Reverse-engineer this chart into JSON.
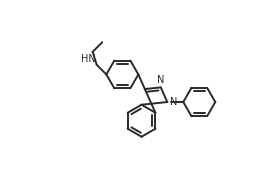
{
  "bg_color": "#ffffff",
  "line_color": "#2a2a2a",
  "line_width": 1.4,
  "font_size": 7.0,
  "figsize": [
    2.65,
    1.95
  ],
  "dpi": 100,
  "xlim": [
    0,
    10
  ],
  "ylim": [
    0,
    7.5
  ]
}
